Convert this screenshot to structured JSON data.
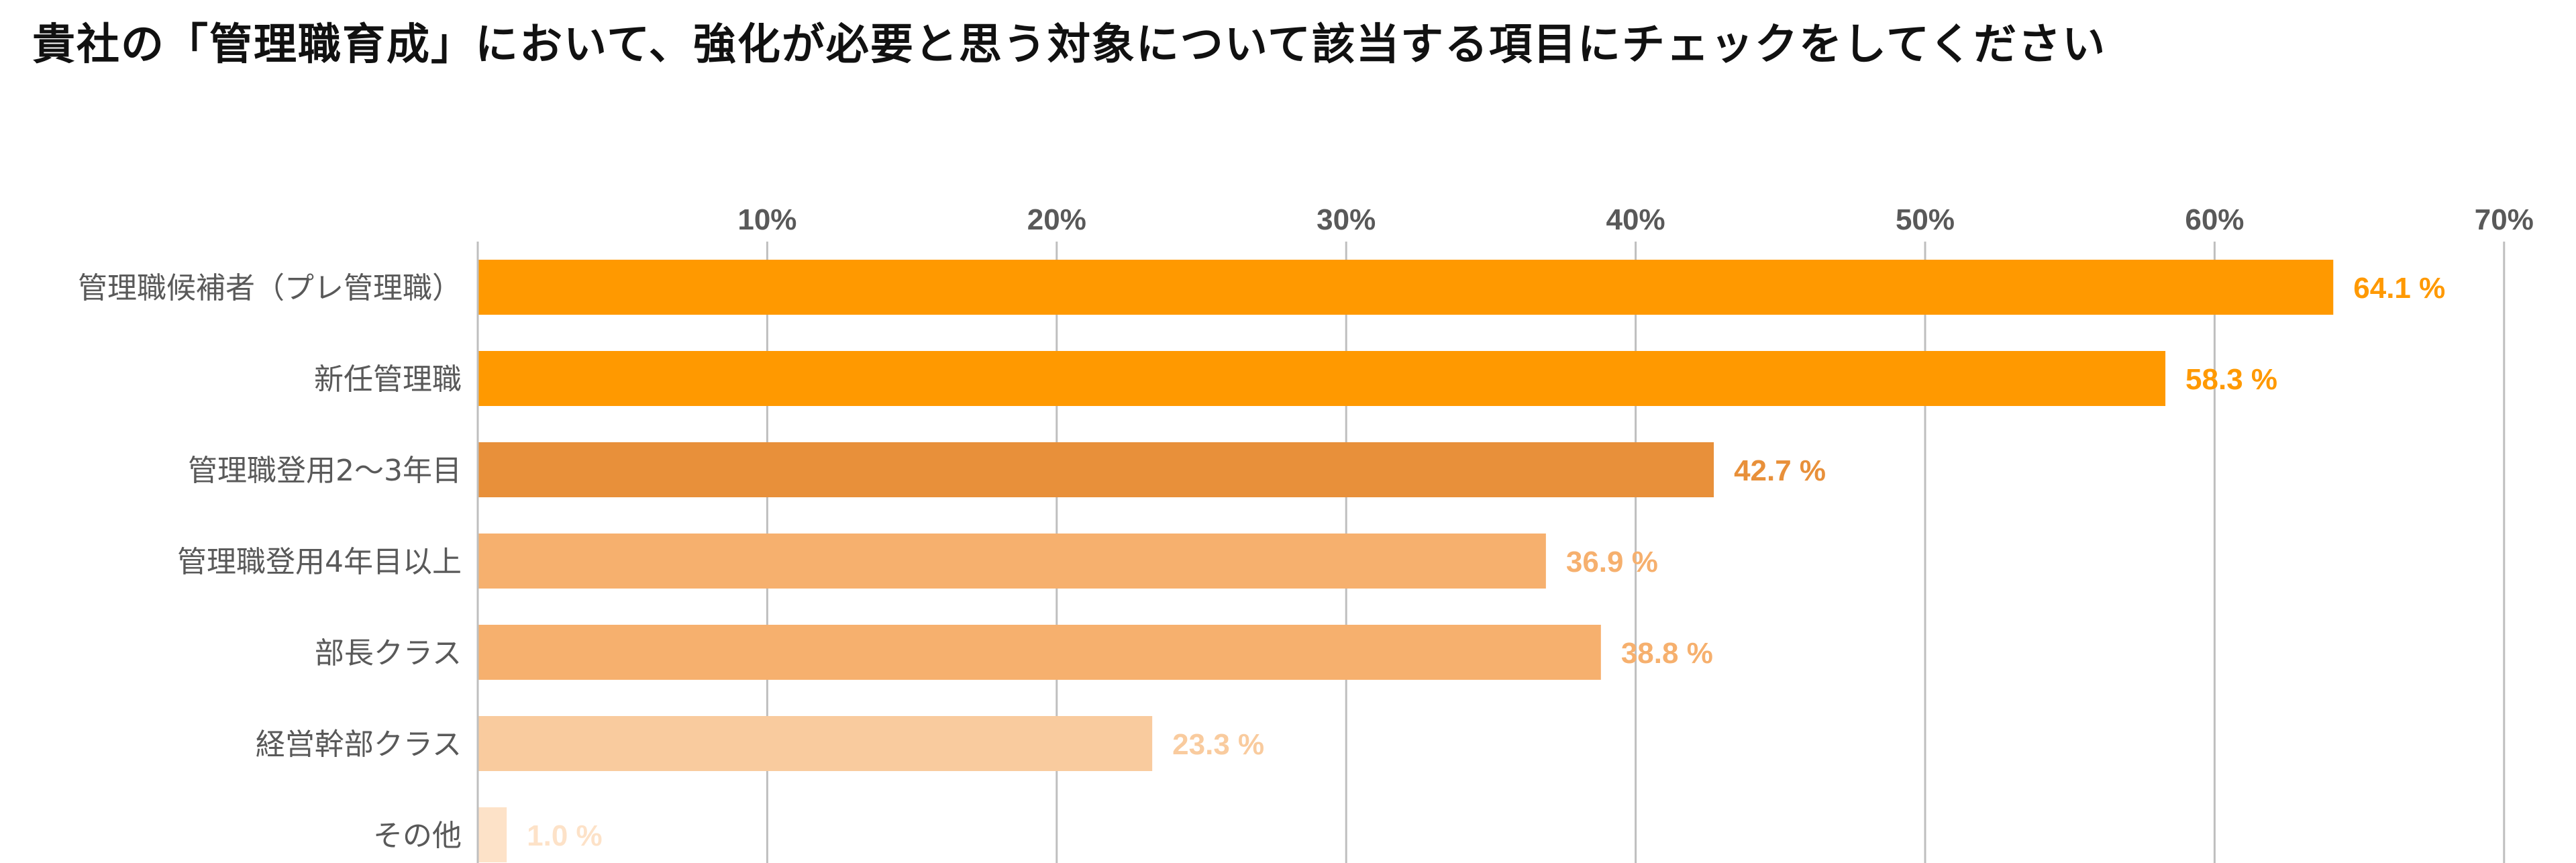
{
  "title": "貴社の「管理職育成」において、強化が必要と思う対象について該当する項目にチェックをしてください",
  "chart_data": {
    "type": "bar",
    "orientation": "horizontal",
    "title": "貴社の「管理職育成」において、強化が必要と思う対象について該当する項目にチェックをしてください",
    "categories": [
      "管理職候補者（プレ管理職）",
      "新任管理職",
      "管理職登用2〜3年目",
      "管理職登用4年目以上",
      "部長クラス",
      "経営幹部クラス",
      "その他"
    ],
    "values": [
      64.1,
      58.3,
      42.7,
      36.9,
      38.8,
      23.3,
      1.0
    ],
    "value_labels": [
      "64.1 %",
      "58.3 %",
      "42.7 %",
      "36.9 %",
      "38.8 %",
      "23.3 %",
      "1.0 %"
    ],
    "colors": [
      "#FF9900",
      "#FF9900",
      "#E8903A",
      "#F6B06E",
      "#F6B06E",
      "#F9CB9E",
      "#FDE2C8"
    ],
    "xlim": [
      0,
      70
    ],
    "xticks": [
      10,
      20,
      30,
      40,
      50,
      60,
      70
    ],
    "xtick_labels": [
      "10%",
      "20%",
      "30%",
      "40%",
      "50%",
      "60%",
      "70%"
    ],
    "xaxis_position": "top",
    "grid": true,
    "legend": "none"
  }
}
